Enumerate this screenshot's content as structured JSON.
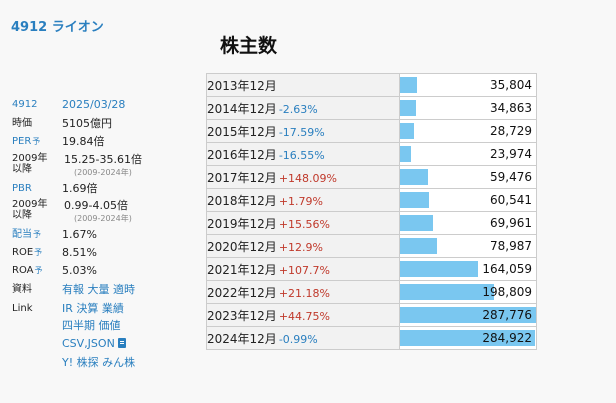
{
  "header": {
    "company": "4912 ライオン"
  },
  "title": "株主数",
  "info": {
    "code": "4912",
    "date": "2025/03/28",
    "market_cap_label": "時価",
    "market_cap": "5105億円",
    "per_label": "PER",
    "per_pred": "予",
    "per": "19.84倍",
    "per_range_label": "2009年\n以降",
    "per_range": "15.25-35.61倍",
    "per_range_years": "(2009-2024年)",
    "pbr_label": "PBR",
    "pbr": "1.69倍",
    "pbr_range_label": "2009年\n以降",
    "pbr_range": "0.99-4.05倍",
    "pbr_range_years": "(2009-2024年)",
    "div_label": "配当",
    "div_pred": "予",
    "div": "1.67%",
    "roe_label": "ROE",
    "roe_pred": "予",
    "roe": "8.51%",
    "roa_label": "ROA",
    "roa_pred": "予",
    "roa": "5.03%",
    "materials_label": "資料",
    "materials_links": [
      "有報",
      "大量",
      "適時"
    ],
    "link_label": "Link",
    "link_row1": [
      "IR",
      "決算",
      "業績"
    ],
    "link_row2": [
      "四半期",
      "価値"
    ],
    "link_row3": "CSV,JSON",
    "link_row4": [
      "Y!",
      "株探",
      "みん株"
    ]
  },
  "table_rows": [
    {
      "year": "2013年12月",
      "change": "",
      "dir": "",
      "value": "35,804"
    },
    {
      "year": "2014年12月",
      "change": "-2.63%",
      "dir": "down",
      "value": "34,863"
    },
    {
      "year": "2015年12月",
      "change": "-17.59%",
      "dir": "down",
      "value": "28,729"
    },
    {
      "year": "2016年12月",
      "change": "-16.55%",
      "dir": "down",
      "value": "23,974"
    },
    {
      "year": "2017年12月",
      "change": "+148.09%",
      "dir": "up",
      "value": "59,476"
    },
    {
      "year": "2018年12月",
      "change": "+1.79%",
      "dir": "up",
      "value": "60,541"
    },
    {
      "year": "2019年12月",
      "change": "+15.56%",
      "dir": "up",
      "value": "69,961"
    },
    {
      "year": "2020年12月",
      "change": "+12.9%",
      "dir": "up",
      "value": "78,987"
    },
    {
      "year": "2021年12月",
      "change": "+107.7%",
      "dir": "up",
      "value": "164,059"
    },
    {
      "year": "2022年12月",
      "change": "+21.18%",
      "dir": "up",
      "value": "198,809"
    },
    {
      "year": "2023年12月",
      "change": "+44.75%",
      "dir": "up",
      "value": "287,776"
    },
    {
      "year": "2024年12月",
      "change": "-0.99%",
      "dir": "down",
      "value": "284,922"
    }
  ],
  "colors": {
    "accent": "#2a7fbf",
    "bar": "#7ac7f0",
    "up": "#c0392b",
    "down": "#2a7fbf"
  }
}
